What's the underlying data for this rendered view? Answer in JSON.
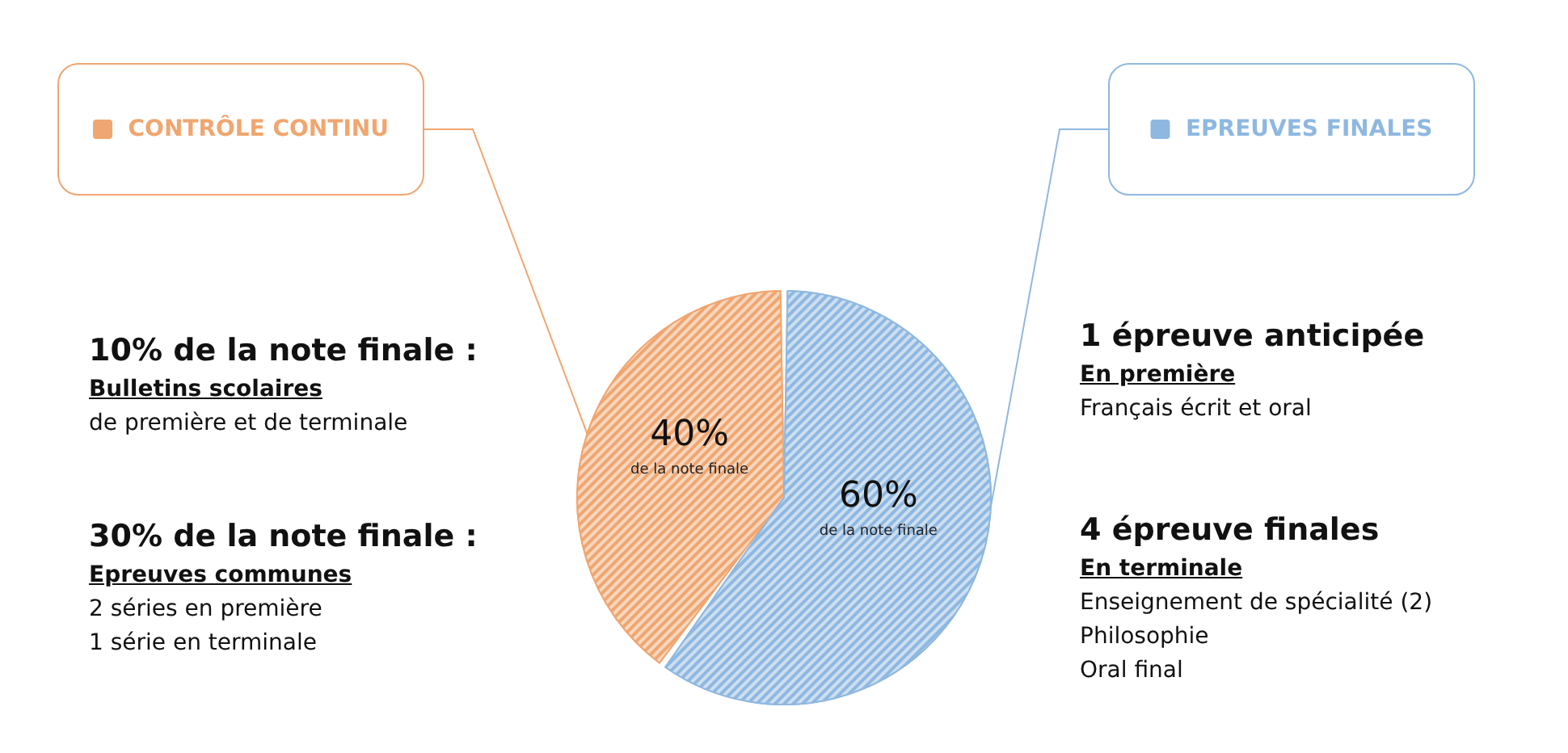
{
  "chart_data": {
    "type": "pie",
    "categories": [
      "CONTRÔLE CONTINU",
      "EPREUVES FINALES"
    ],
    "values": [
      40,
      60
    ],
    "colors": [
      "#f0a670",
      "#8fb8e0"
    ],
    "value_labels": [
      "40%",
      "60%"
    ],
    "annotations": [
      "de la note finale",
      "de la note finale",
      "10% de la note finale :\nBulletins scolaires\nde première et de terminale",
      "30% de la note finale :\nEpreuves communes\n2 séries en première\n1 série en terminale",
      "1 épreuve anticipée\nEn première\nFrançais écrit et oral",
      "4 épreuve finales\nEn terminale\nEnseignement de spécialité (2)\nPhilosophie\nOral final"
    ],
    "legend": "top"
  }
}
